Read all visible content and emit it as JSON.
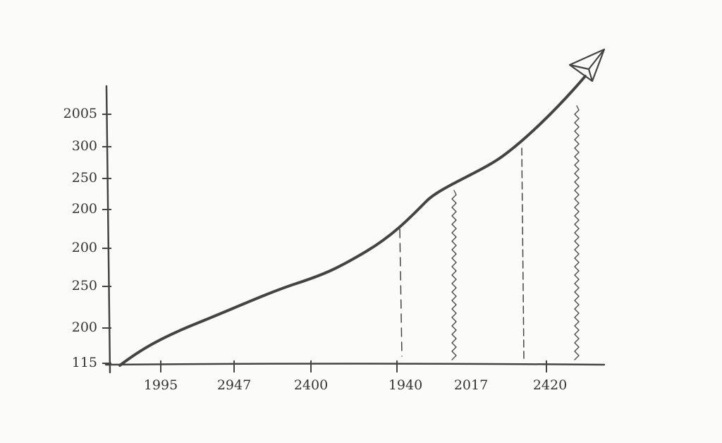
{
  "sketch": {
    "y_labels": [
      "2005",
      "300",
      "250",
      "200",
      "200",
      "250",
      "200",
      "115"
    ],
    "x_labels": [
      "1995",
      "2947",
      "2400",
      "1940",
      "2017",
      "2420"
    ]
  }
}
